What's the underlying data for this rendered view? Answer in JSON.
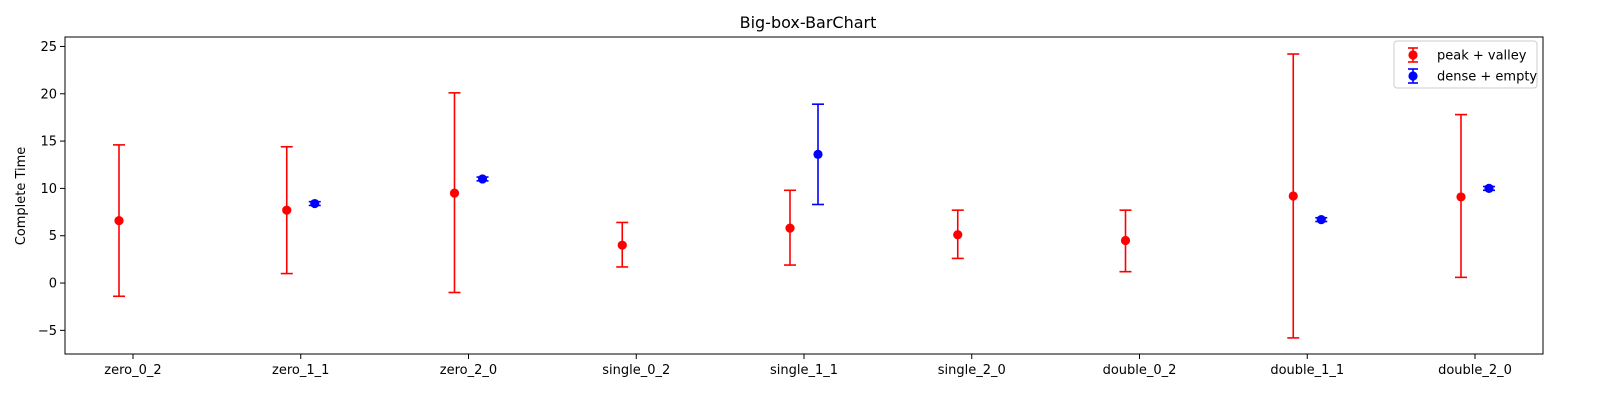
{
  "chart_data": {
    "type": "scatter",
    "subtype": "errorbar",
    "title": "Big-box-BarChart",
    "xlabel": "",
    "ylabel": "Complete Time",
    "ylim": [
      -7.5,
      26
    ],
    "yticks": [
      -5,
      0,
      5,
      10,
      15,
      20,
      25
    ],
    "categories": [
      "zero_0_2",
      "zero_1_1",
      "zero_2_0",
      "single_0_2",
      "single_1_1",
      "single_2_0",
      "double_0_2",
      "double_1_1",
      "double_2_0"
    ],
    "legend_position": "top-right",
    "grid": false,
    "series": [
      {
        "name": "peak + valley",
        "color": "#ff0000",
        "offset": "left",
        "points": [
          {
            "category": "zero_0_2",
            "y": 6.6,
            "low": -1.4,
            "high": 14.6
          },
          {
            "category": "zero_1_1",
            "y": 7.7,
            "low": 1.0,
            "high": 14.4
          },
          {
            "category": "zero_2_0",
            "y": 9.5,
            "low": -1.0,
            "high": 20.1
          },
          {
            "category": "single_0_2",
            "y": 4.0,
            "low": 1.7,
            "high": 6.4
          },
          {
            "category": "single_1_1",
            "y": 5.8,
            "low": 1.9,
            "high": 9.8
          },
          {
            "category": "single_2_0",
            "y": 5.1,
            "low": 2.6,
            "high": 7.7
          },
          {
            "category": "double_0_2",
            "y": 4.5,
            "low": 1.2,
            "high": 7.7
          },
          {
            "category": "double_1_1",
            "y": 9.2,
            "low": -5.8,
            "high": 24.2
          },
          {
            "category": "double_2_0",
            "y": 9.1,
            "low": 0.6,
            "high": 17.8
          }
        ]
      },
      {
        "name": "dense + empty",
        "color": "#0000ff",
        "offset": "right",
        "points": [
          {
            "category": "zero_1_1",
            "y": 8.4,
            "low": 8.2,
            "high": 8.6
          },
          {
            "category": "zero_2_0",
            "y": 11.0,
            "low": 10.8,
            "high": 11.2
          },
          {
            "category": "single_1_1",
            "y": 13.6,
            "low": 8.3,
            "high": 18.9
          },
          {
            "category": "double_1_1",
            "y": 6.7,
            "low": 6.5,
            "high": 6.9
          },
          {
            "category": "double_2_0",
            "y": 10.0,
            "low": 9.8,
            "high": 10.2
          }
        ]
      }
    ]
  }
}
